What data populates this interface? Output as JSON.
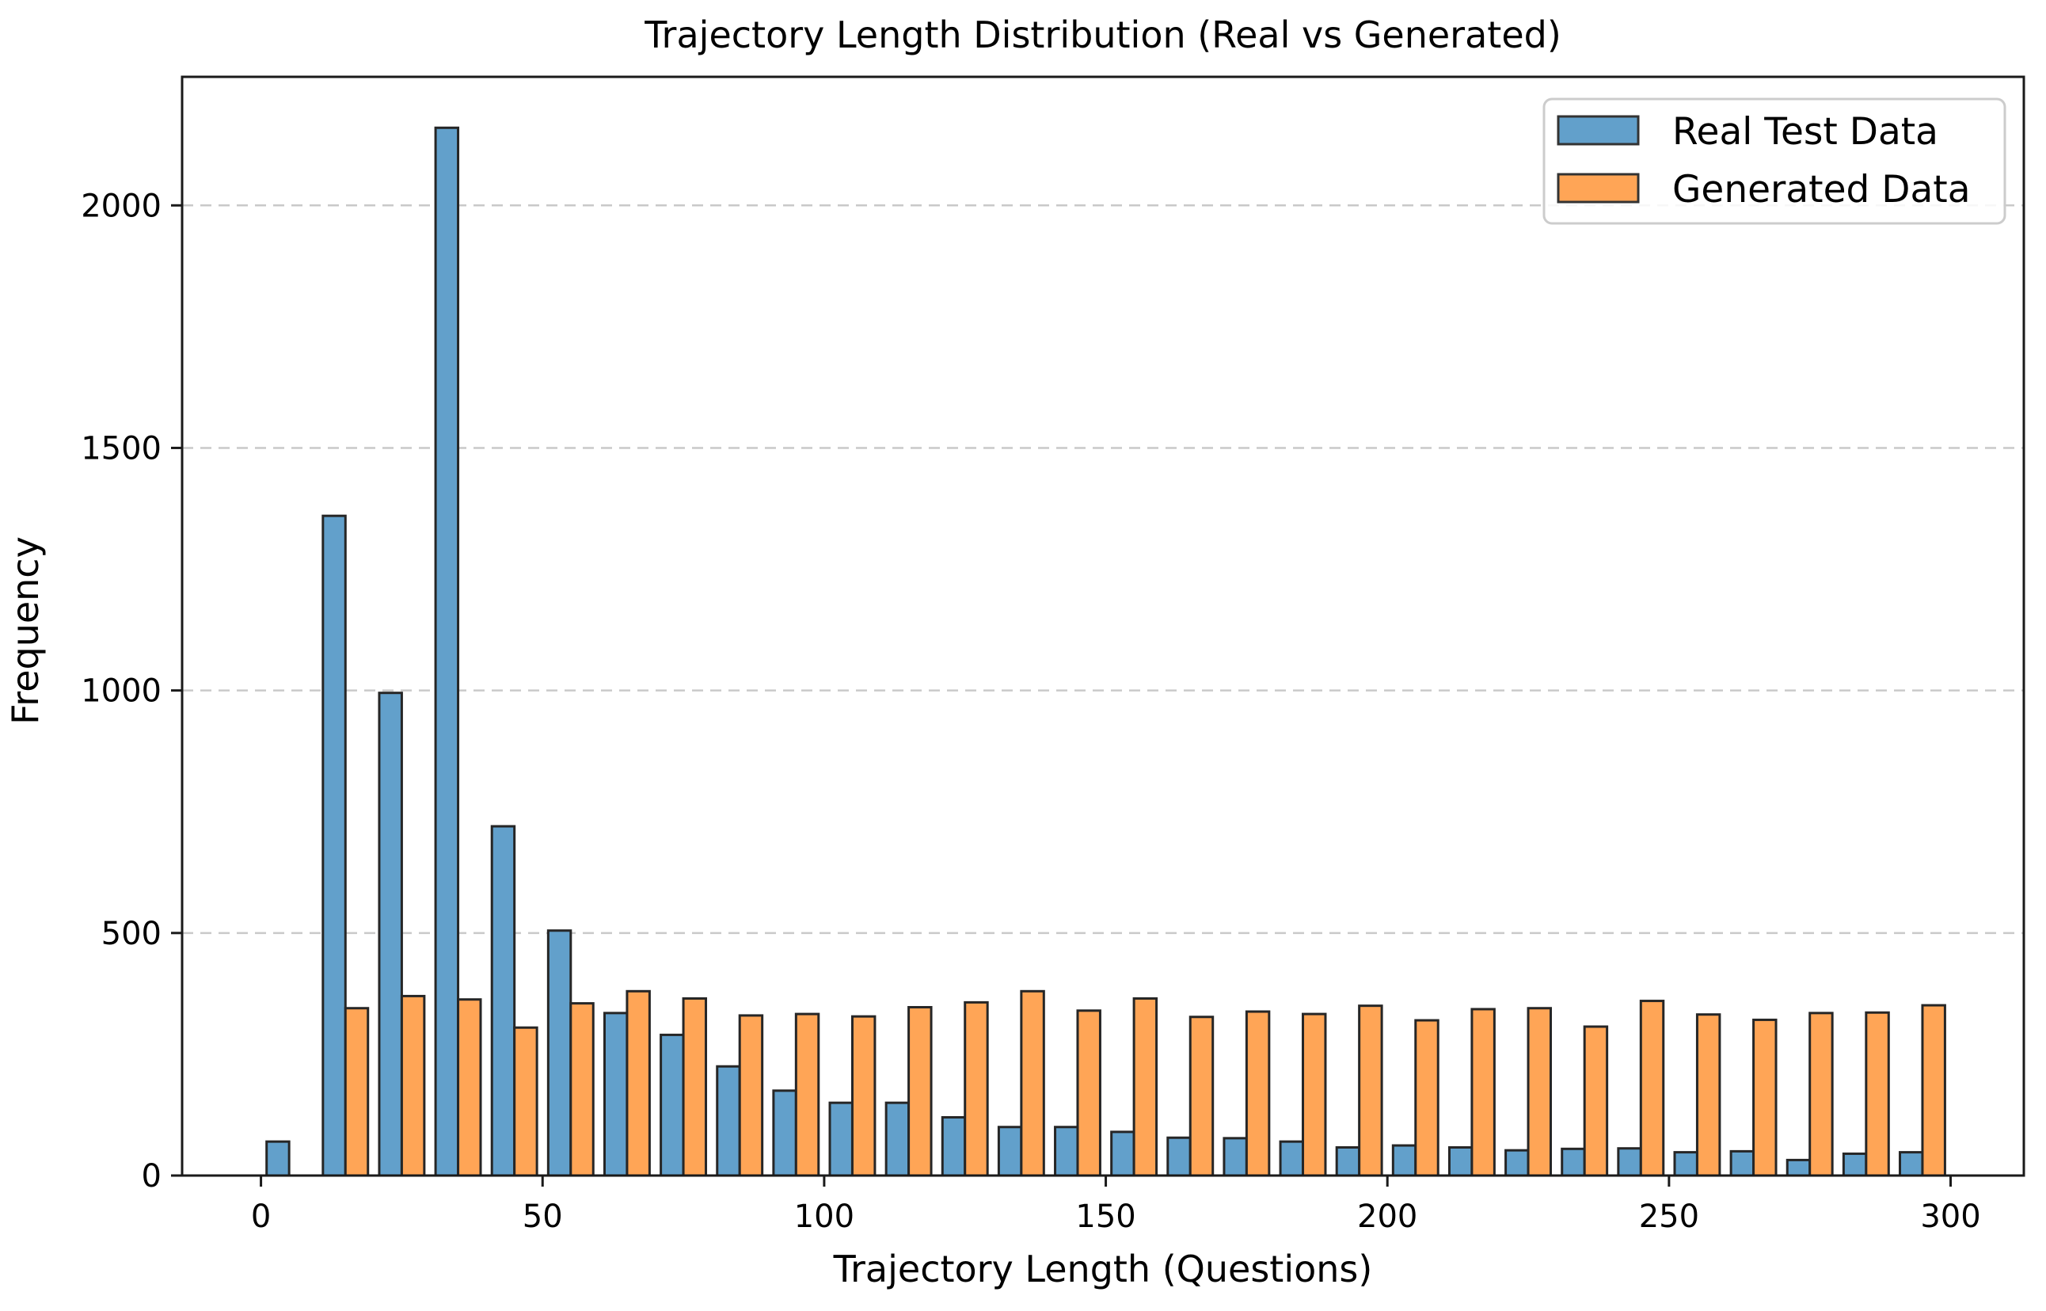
{
  "chart_data": {
    "type": "bar",
    "subtype": "grouped-histogram",
    "title": "Trajectory Length Distribution (Real vs Generated)",
    "xlabel": "Trajectory Length (Questions)",
    "ylabel": "Frequency",
    "bin_edges": [
      0,
      10,
      20,
      30,
      40,
      50,
      60,
      70,
      80,
      90,
      100,
      110,
      120,
      130,
      140,
      150,
      160,
      170,
      180,
      190,
      200,
      210,
      220,
      230,
      240,
      250,
      260,
      270,
      280,
      290,
      300
    ],
    "series": [
      {
        "name": "Real Test Data",
        "color": "#62A0CB",
        "values": [
          70,
          1360,
          995,
          2160,
          720,
          505,
          335,
          290,
          225,
          175,
          150,
          150,
          120,
          100,
          100,
          90,
          78,
          77,
          70,
          58,
          62,
          58,
          52,
          55,
          56,
          48,
          50,
          32,
          45,
          48
        ]
      },
      {
        "name": "Generated Data",
        "color": "#FFA556",
        "values": [
          0,
          345,
          370,
          363,
          305,
          355,
          380,
          365,
          330,
          333,
          328,
          347,
          357,
          380,
          340,
          365,
          327,
          338,
          333,
          350,
          320,
          343,
          345,
          307,
          360,
          332,
          321,
          335,
          336,
          351
        ]
      }
    ],
    "x_ticks": [
      0,
      50,
      100,
      150,
      200,
      250,
      300
    ],
    "y_ticks": [
      0,
      500,
      1000,
      1500,
      2000
    ],
    "xlim": [
      -14,
      313
    ],
    "ylim": [
      0,
      2265
    ],
    "grid": {
      "axis": "y",
      "style": "dashed",
      "color": "#c9c9c9"
    },
    "bar_edge_color": "#262626",
    "spine_color": "#1a1a1a",
    "legend": {
      "position": "upper right"
    }
  }
}
